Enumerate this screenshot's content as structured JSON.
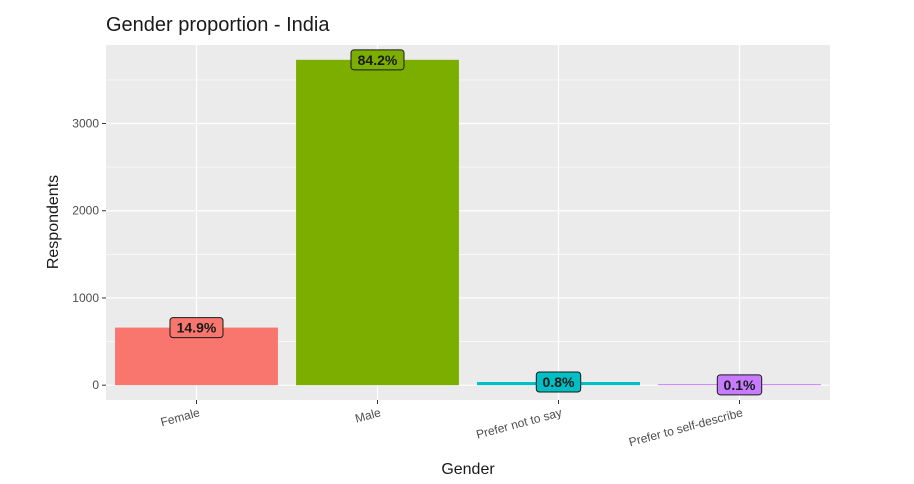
{
  "chart_data": {
    "type": "bar",
    "title": "Gender proportion - India",
    "xlabel": "Gender",
    "ylabel": "Respondents",
    "categories": [
      "Female",
      "Male",
      "Prefer not to say",
      "Prefer to self-describe"
    ],
    "values": [
      660,
      3730,
      36,
      4
    ],
    "data_labels": [
      "14.9%",
      "84.2%",
      "0.8%",
      "0.1%"
    ],
    "colors": [
      "#F8766D",
      "#7CAE00",
      "#00BFC4",
      "#C77CFF"
    ],
    "ylim": [
      -170,
      3900
    ],
    "yticks": [
      0,
      1000,
      2000,
      3000
    ],
    "ytick_labels": [
      "0",
      "1000",
      "2000",
      "3000"
    ],
    "panel_background": "#EBEBEB",
    "grid": true,
    "legend": "none"
  }
}
